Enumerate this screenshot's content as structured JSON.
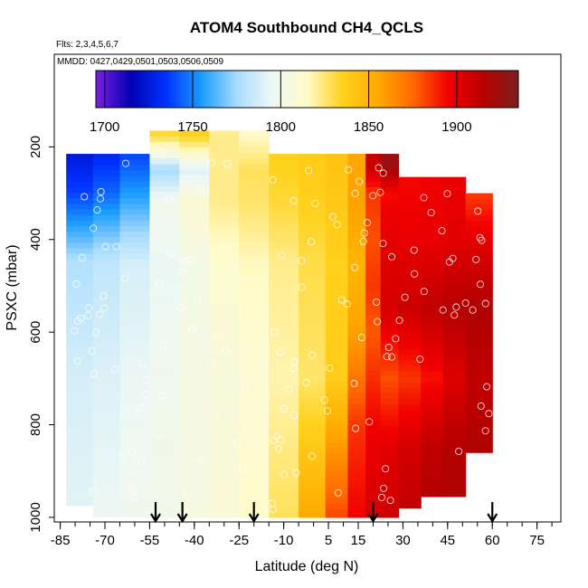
{
  "chart_data": {
    "type": "heatmap",
    "title": "ATOM4 Southbound CH4_QCLS",
    "subtitle_flights": "Flts: 2,3,4,5,6,7",
    "subtitle_dates": "MMDD: 0427,0429,0501,0503,0506,0509",
    "xlabel": "Latitude (deg N)",
    "ylabel": "PSXC (mbar)",
    "xlim": [
      -87,
      83
    ],
    "ylim": [
      1010,
      0
    ],
    "x_ticks": [
      -85,
      -70,
      -55,
      -40,
      -25,
      -10,
      5,
      15,
      30,
      45,
      60,
      75
    ],
    "x_tick_labels": [
      "-85",
      "-70",
      "-55",
      "-40",
      "-25",
      "-10",
      "5",
      "15",
      "30",
      "45",
      "60",
      "75"
    ],
    "x_minor_step": 5,
    "y_ticks": [
      200,
      400,
      600,
      800,
      1000
    ],
    "y_tick_labels": [
      "200",
      "400",
      "600",
      "800",
      "1000"
    ],
    "colorbar": {
      "min": 1695,
      "max": 1935,
      "ticks": [
        1700,
        1750,
        1800,
        1850,
        1900
      ],
      "tick_labels": [
        "1700",
        "1750",
        "1800",
        "1850",
        "1900"
      ],
      "palette": [
        "#7b1fe0",
        "#0000b4",
        "#0033ff",
        "#1a9cff",
        "#a8dcff",
        "#eef8f4",
        "#fffac8",
        "#ffd21e",
        "#ffaa00",
        "#ff6a00",
        "#f20000",
        "#b80000",
        "#7a1f1f"
      ]
    },
    "arrow_latitudes": [
      -53,
      -44,
      -20,
      20,
      60
    ],
    "columns": [
      {
        "lat": -78,
        "p_top": 215,
        "p_bot": 975,
        "profile": [
          [
            200,
            1722
          ],
          [
            300,
            1738
          ],
          [
            450,
            1778
          ],
          [
            700,
            1788
          ],
          [
            1000,
            1792
          ]
        ]
      },
      {
        "lat": -70,
        "p_top": 215,
        "p_bot": 1000,
        "profile": [
          [
            200,
            1728
          ],
          [
            300,
            1745
          ],
          [
            450,
            1782
          ],
          [
            700,
            1790
          ],
          [
            1000,
            1795
          ]
        ]
      },
      {
        "lat": -60,
        "p_top": 215,
        "p_bot": 1000,
        "profile": [
          [
            200,
            1735
          ],
          [
            300,
            1755
          ],
          [
            450,
            1788
          ],
          [
            700,
            1794
          ],
          [
            1000,
            1798
          ]
        ]
      },
      {
        "lat": -50,
        "p_top": 165,
        "p_bot": 1000,
        "profile": [
          [
            175,
            1832
          ],
          [
            250,
            1775
          ],
          [
            320,
            1800
          ],
          [
            450,
            1794
          ],
          [
            700,
            1798
          ],
          [
            1000,
            1800
          ]
        ]
      },
      {
        "lat": -40,
        "p_top": 165,
        "p_bot": 1000,
        "profile": [
          [
            175,
            1836
          ],
          [
            250,
            1790
          ],
          [
            320,
            1810
          ],
          [
            450,
            1802
          ],
          [
            700,
            1803
          ],
          [
            1000,
            1804
          ]
        ]
      },
      {
        "lat": -30,
        "p_top": 165,
        "p_bot": 1000,
        "profile": [
          [
            175,
            1822
          ],
          [
            250,
            1822
          ],
          [
            320,
            1822
          ],
          [
            450,
            1812
          ],
          [
            700,
            1806
          ],
          [
            1000,
            1808
          ]
        ]
      },
      {
        "lat": -20,
        "p_top": 165,
        "p_bot": 1000,
        "profile": [
          [
            175,
            1815
          ],
          [
            250,
            1828
          ],
          [
            320,
            1826
          ],
          [
            450,
            1816
          ],
          [
            700,
            1810
          ],
          [
            1000,
            1814
          ]
        ]
      },
      {
        "lat": -10,
        "p_top": 215,
        "p_bot": 1000,
        "profile": [
          [
            250,
            1835
          ],
          [
            320,
            1832
          ],
          [
            450,
            1822
          ],
          [
            700,
            1818
          ],
          [
            1000,
            1828
          ]
        ]
      },
      {
        "lat": 0,
        "p_top": 215,
        "p_bot": 1000,
        "profile": [
          [
            250,
            1838
          ],
          [
            320,
            1836
          ],
          [
            450,
            1830
          ],
          [
            700,
            1826
          ],
          [
            900,
            1845
          ],
          [
            1000,
            1855
          ]
        ]
      },
      {
        "lat": 8,
        "p_top": 215,
        "p_bot": 1000,
        "profile": [
          [
            250,
            1842
          ],
          [
            320,
            1840
          ],
          [
            450,
            1836
          ],
          [
            700,
            1838
          ],
          [
            900,
            1868
          ],
          [
            1000,
            1882
          ]
        ]
      },
      {
        "lat": 15,
        "p_top": 215,
        "p_bot": 1000,
        "profile": [
          [
            250,
            1856
          ],
          [
            320,
            1858
          ],
          [
            450,
            1850
          ],
          [
            600,
            1858
          ],
          [
            800,
            1885
          ],
          [
            1000,
            1895
          ]
        ]
      },
      {
        "lat": 20,
        "p_top": 215,
        "p_bot": 1000,
        "profile": [
          [
            240,
            1910
          ],
          [
            300,
            1885
          ],
          [
            400,
            1880
          ],
          [
            500,
            1885
          ],
          [
            600,
            1878
          ],
          [
            800,
            1895
          ],
          [
            1000,
            1905
          ]
        ]
      },
      {
        "lat": 25,
        "p_top": 215,
        "p_bot": 1000,
        "profile": [
          [
            240,
            1925
          ],
          [
            300,
            1893
          ],
          [
            400,
            1900
          ],
          [
            550,
            1905
          ],
          [
            700,
            1880
          ],
          [
            850,
            1900
          ],
          [
            1000,
            1908
          ]
        ]
      },
      {
        "lat": 32,
        "p_top": 265,
        "p_bot": 980,
        "profile": [
          [
            280,
            1894
          ],
          [
            400,
            1898
          ],
          [
            550,
            1908
          ],
          [
            700,
            1885
          ],
          [
            850,
            1905
          ],
          [
            980,
            1912
          ]
        ]
      },
      {
        "lat": 40,
        "p_top": 265,
        "p_bot": 955,
        "profile": [
          [
            280,
            1896
          ],
          [
            400,
            1898
          ],
          [
            550,
            1912
          ],
          [
            700,
            1892
          ],
          [
            850,
            1912
          ],
          [
            950,
            1916
          ]
        ]
      },
      {
        "lat": 47,
        "p_top": 265,
        "p_bot": 955,
        "profile": [
          [
            280,
            1898
          ],
          [
            400,
            1900
          ],
          [
            550,
            1916
          ],
          [
            700,
            1902
          ],
          [
            850,
            1916
          ],
          [
            950,
            1918
          ]
        ]
      },
      {
        "lat": 55,
        "p_top": 300,
        "p_bot": 860,
        "profile": [
          [
            310,
            1885
          ],
          [
            400,
            1900
          ],
          [
            550,
            1918
          ],
          [
            700,
            1912
          ],
          [
            850,
            1918
          ]
        ]
      }
    ]
  }
}
